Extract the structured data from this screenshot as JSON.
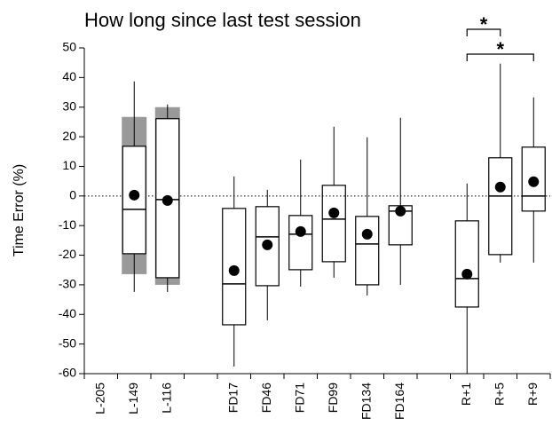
{
  "chart_data": {
    "type": "box",
    "title": "How long since last test session",
    "y_label": "Time Error (%)",
    "ylim": [
      -60,
      50
    ],
    "yticks": [
      -60,
      -50,
      -40,
      -30,
      -20,
      -10,
      0,
      10,
      20,
      30,
      40,
      50
    ],
    "reference_line": 0,
    "box_color": "#000000",
    "range_color": "#999999",
    "categories": [
      "L-205",
      "L-149",
      "L-116",
      null,
      "FD17",
      "FD46",
      "FD71",
      "FD99",
      "FD134",
      "FD164",
      null,
      "R+1",
      "R+5",
      "R+9"
    ],
    "boxes": [
      null,
      {
        "whisker_low": -32.4,
        "q1": -19.5,
        "median": -4.5,
        "q3": 16.8,
        "whisker_high": 38.7,
        "mean": 0.3,
        "range": [
          -26.4,
          26.7
        ]
      },
      {
        "whisker_low": -32.4,
        "q1": -27.6,
        "median": -1.2,
        "q3": 26.1,
        "whisker_high": 30.9,
        "mean": -1.5,
        "range": [
          -30,
          30
        ]
      },
      null,
      {
        "whisker_low": -57.6,
        "q1": -43.5,
        "median": -29.7,
        "q3": -4.2,
        "whisker_high": 6.6,
        "mean": -25.2
      },
      {
        "whisker_low": -42,
        "q1": -30.3,
        "median": -13.8,
        "q3": -3.6,
        "whisker_high": 2.1,
        "mean": -16.5
      },
      {
        "whisker_low": -30.6,
        "q1": -24.9,
        "median": -12.9,
        "q3": -6.6,
        "whisker_high": 12.3,
        "mean": -12
      },
      {
        "whisker_low": -27.6,
        "q1": -22.2,
        "median": -7.8,
        "q3": 3.6,
        "whisker_high": 23.4,
        "mean": -5.7
      },
      {
        "whisker_low": -33.6,
        "q1": -30,
        "median": -16.2,
        "q3": -6.9,
        "whisker_high": 19.8,
        "mean": -12.9
      },
      {
        "whisker_low": -30,
        "q1": -16.5,
        "median": -5.1,
        "q3": -3.3,
        "whisker_high": 26.4,
        "mean": -5.1
      },
      null,
      {
        "whisker_low": -60,
        "q1": -37.5,
        "median": -27.9,
        "q3": -8.4,
        "whisker_high": 4.2,
        "mean": -26.4
      },
      {
        "whisker_low": -22.5,
        "q1": -19.8,
        "median": 0,
        "q3": 12.9,
        "whisker_high": 44.7,
        "mean": 3
      },
      {
        "whisker_low": -22.5,
        "q1": -5.1,
        "median": 0,
        "q3": 16.5,
        "whisker_high": 33.3,
        "mean": 4.8
      }
    ],
    "significance": [
      {
        "label": "*",
        "groups": [
          "R+1",
          "R+5"
        ]
      },
      {
        "label": "*",
        "groups": [
          "R+1",
          "R+9"
        ]
      }
    ]
  }
}
